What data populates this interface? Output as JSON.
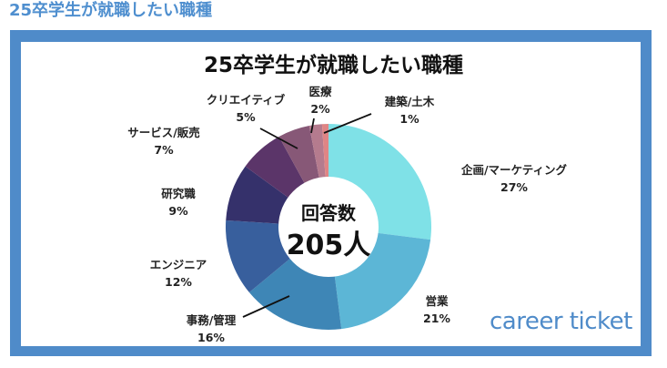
{
  "page": {
    "heading": "25卒学生が就職したい職種"
  },
  "chart_data": {
    "type": "pie",
    "variant": "donut",
    "title": "25卒学生が就職したい職種",
    "center_title": "回答数",
    "center_value": "205人",
    "categories": [
      "企画/マーケティング",
      "営業",
      "事務/管理",
      "エンジニア",
      "研究職",
      "サービス/販売",
      "クリエイティブ",
      "医療",
      "建築/土木"
    ],
    "values": [
      27,
      21,
      16,
      12,
      9,
      7,
      5,
      2,
      1
    ],
    "unit": "%",
    "colors": [
      "#7fe1e7",
      "#5cb6d6",
      "#3e86b6",
      "#385f9d",
      "#35316b",
      "#5b3569",
      "#875877",
      "#b57b8e",
      "#df8585"
    ],
    "labels": [
      {
        "name": "企画/マーケティング",
        "pct": "27%"
      },
      {
        "name": "営業",
        "pct": "21%"
      },
      {
        "name": "事務/管理",
        "pct": "16%"
      },
      {
        "name": "エンジニア",
        "pct": "12%"
      },
      {
        "name": "研究職",
        "pct": "9%"
      },
      {
        "name": "サービス/販売",
        "pct": "7%"
      },
      {
        "name": "クリエイティブ",
        "pct": "5%"
      },
      {
        "name": "医療",
        "pct": "2%"
      },
      {
        "name": "建築/土木",
        "pct": "1%"
      }
    ]
  },
  "brand": {
    "logo_text": "career ticket",
    "frame_color": "#4f8bc9",
    "heading_color": "#4f8fcf"
  }
}
